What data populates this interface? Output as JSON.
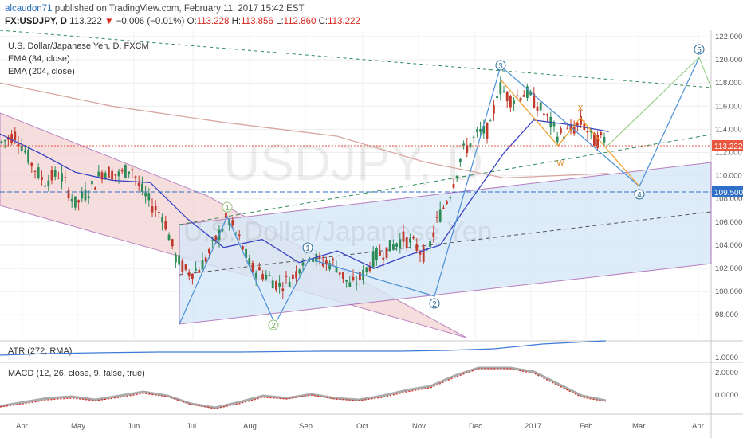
{
  "header": {
    "author": "alcaudon71",
    "published": "published on TradingView.com, February 11, 2017 15:42 EST",
    "symbol": "FX:USDJPY, D",
    "last": "113.222",
    "change_arrow": "▼",
    "change": "−0.006 (−0.01%)",
    "o_label": "O:",
    "o_value": "113.228",
    "h_label": "H:",
    "h_value": "113.856",
    "l_label": "L:",
    "l_value": "112.860",
    "c_label": "C:",
    "c_value": "113.222"
  },
  "legend": {
    "title": "U.S. Dollar/Japanese Yen, D, FXCM",
    "ema1": "EMA (34, close)",
    "ema2": "EMA (204, close)"
  },
  "watermark": {
    "big": "USDJPY, D",
    "small": "U.S. Dollar/Japanese Yen"
  },
  "wave_labels": {
    "w1a": "1",
    "w1b": "1",
    "w2a": "2",
    "w2b": "2",
    "w3": "3",
    "w4": "4",
    "w5": "5",
    "x": "X",
    "w": "W"
  },
  "price_badges": {
    "current": "113.222",
    "level": "109.500",
    "colors": {
      "current": "#e9573f",
      "level": "#2f6fc7"
    }
  },
  "atr": {
    "label": "ATR (272, RMA)",
    "tick": "1.0000"
  },
  "macd": {
    "label": "MACD (12, 26, close, 9, false, true)",
    "ticks": [
      "2.0000",
      "0.0000"
    ]
  },
  "chart_data": {
    "type": "candlestick",
    "y_ticks": [
      "122.000",
      "120.000",
      "118.000",
      "116.000",
      "114.000",
      "112.000",
      "110.000",
      "108.000",
      "106.000",
      "104.000",
      "102.000",
      "100.000",
      "98.000"
    ],
    "ylim": [
      98,
      122
    ],
    "x_ticks": [
      "Apr",
      "May",
      "Jun",
      "Jul",
      "Aug",
      "Sep",
      "Oct",
      "Nov",
      "Dec",
      "2017",
      "Feb",
      "Mar",
      "Apr"
    ],
    "ema34": [
      [
        "2016-03-15",
        113.6
      ],
      [
        "2016-04-05",
        112.0
      ],
      [
        "2016-04-25",
        110.3
      ],
      [
        "2016-05-15",
        109.6
      ],
      [
        "2016-06-05",
        109.4
      ],
      [
        "2016-06-25",
        106.3
      ],
      [
        "2016-07-15",
        103.8
      ],
      [
        "2016-08-05",
        104.5
      ],
      [
        "2016-08-25",
        102.5
      ],
      [
        "2016-09-15",
        103.5
      ],
      [
        "2016-10-05",
        102.0
      ],
      [
        "2016-10-25",
        103.2
      ],
      [
        "2016-11-10",
        104.0
      ],
      [
        "2016-11-25",
        107.5
      ],
      [
        "2016-12-15",
        112.0
      ],
      [
        "2016-12-31",
        114.8
      ],
      [
        "2017-01-20",
        114.4
      ],
      [
        "2017-02-10",
        113.8
      ]
    ],
    "ema204": [
      [
        "2016-03-15",
        118.0
      ],
      [
        "2016-05-15",
        116.0
      ],
      [
        "2016-07-15",
        114.6
      ],
      [
        "2016-09-15",
        113.4
      ],
      [
        "2016-11-01",
        111.2
      ],
      [
        "2016-12-15",
        109.8
      ],
      [
        "2017-02-10",
        110.2
      ]
    ],
    "colors": {
      "up": "#2e8b57",
      "down": "#c0392b",
      "ema34": "#3b46c4",
      "ema204": "#d8a6a0",
      "channel_down": "#f3d4d4",
      "channel_up": "#d3e6f7",
      "trend": "#8e44ad"
    }
  }
}
